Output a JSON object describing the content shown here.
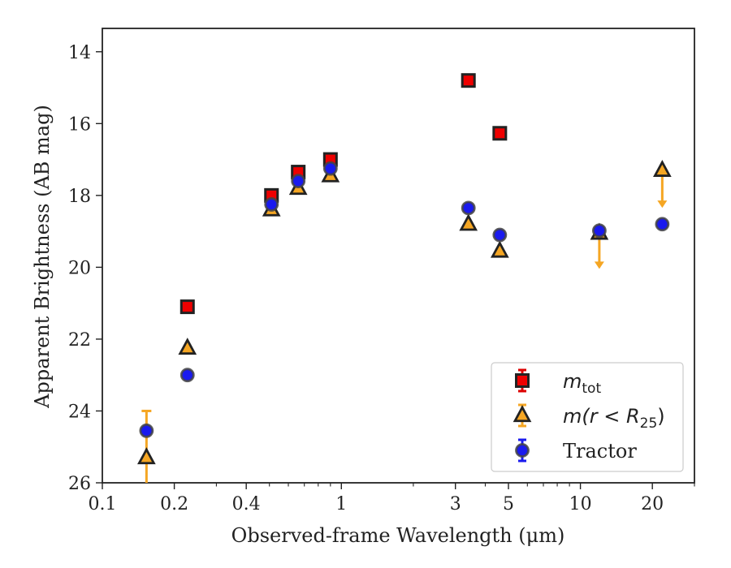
{
  "chart_data": {
    "type": "scatter",
    "xlabel": "Observed-frame Wavelength (μm)",
    "ylabel": "Apparent Brightness (AB mag)",
    "x_scale": "log",
    "xlim": [
      0.1,
      30
    ],
    "ylim": [
      26,
      13.35
    ],
    "y_inverted": true,
    "x_ticks": [
      0.1,
      0.2,
      0.4,
      1,
      3,
      5,
      10,
      20
    ],
    "x_tick_labels": [
      "0.1",
      "0.2",
      "0.4",
      "1",
      "3",
      "5",
      "10",
      "20"
    ],
    "y_ticks": [
      14,
      16,
      18,
      20,
      22,
      24,
      26
    ],
    "y_tick_labels": [
      "14",
      "16",
      "18",
      "20",
      "22",
      "24",
      "26"
    ],
    "grid": false,
    "legend_position": "bottom-right",
    "series": [
      {
        "name": "m_tot",
        "legend_label": "m",
        "legend_subscript": "tot",
        "marker": "square",
        "face_color": "#ee0000",
        "edge_color": "#222222",
        "errorbar_color": "#dd0000",
        "points": [
          {
            "x": 0.227,
            "y": 21.1
          },
          {
            "x": 0.51,
            "y": 18.0
          },
          {
            "x": 0.66,
            "y": 17.35
          },
          {
            "x": 0.9,
            "y": 17.0
          },
          {
            "x": 3.4,
            "y": 14.8
          },
          {
            "x": 4.6,
            "y": 16.27
          }
        ]
      },
      {
        "name": "m(r < R25)",
        "legend_label": "m(r < R",
        "legend_subscript": "25",
        "marker": "triangle",
        "face_color": "#f5a623",
        "edge_color": "#222222",
        "errorbar_color": "#f5a623",
        "points": [
          {
            "x": 0.153,
            "y": 25.3,
            "yerr_low": 1.3,
            "yerr_high": 1.3
          },
          {
            "x": 0.227,
            "y": 22.25
          },
          {
            "x": 0.51,
            "y": 18.4
          },
          {
            "x": 0.66,
            "y": 17.8
          },
          {
            "x": 0.9,
            "y": 17.45
          },
          {
            "x": 3.4,
            "y": 18.8
          },
          {
            "x": 4.6,
            "y": 19.55
          },
          {
            "x": 12.0,
            "y": 19.05,
            "upper_limit": true,
            "arrow_to": 20.0
          },
          {
            "x": 22.0,
            "y": 17.3,
            "upper_limit": true,
            "arrow_to": 18.3
          }
        ]
      },
      {
        "name": "Tractor",
        "legend_label": "Tractor",
        "marker": "circle",
        "face_color": "#1a1aee",
        "edge_color": "#444444",
        "errorbar_color": "#1a1aee",
        "points": [
          {
            "x": 0.153,
            "y": 24.55
          },
          {
            "x": 0.227,
            "y": 23.0
          },
          {
            "x": 0.51,
            "y": 18.25
          },
          {
            "x": 0.66,
            "y": 17.6
          },
          {
            "x": 0.9,
            "y": 17.25
          },
          {
            "x": 3.4,
            "y": 18.35
          },
          {
            "x": 4.6,
            "y": 19.1
          },
          {
            "x": 12.0,
            "y": 18.98
          },
          {
            "x": 22.0,
            "y": 18.8
          }
        ]
      }
    ]
  }
}
